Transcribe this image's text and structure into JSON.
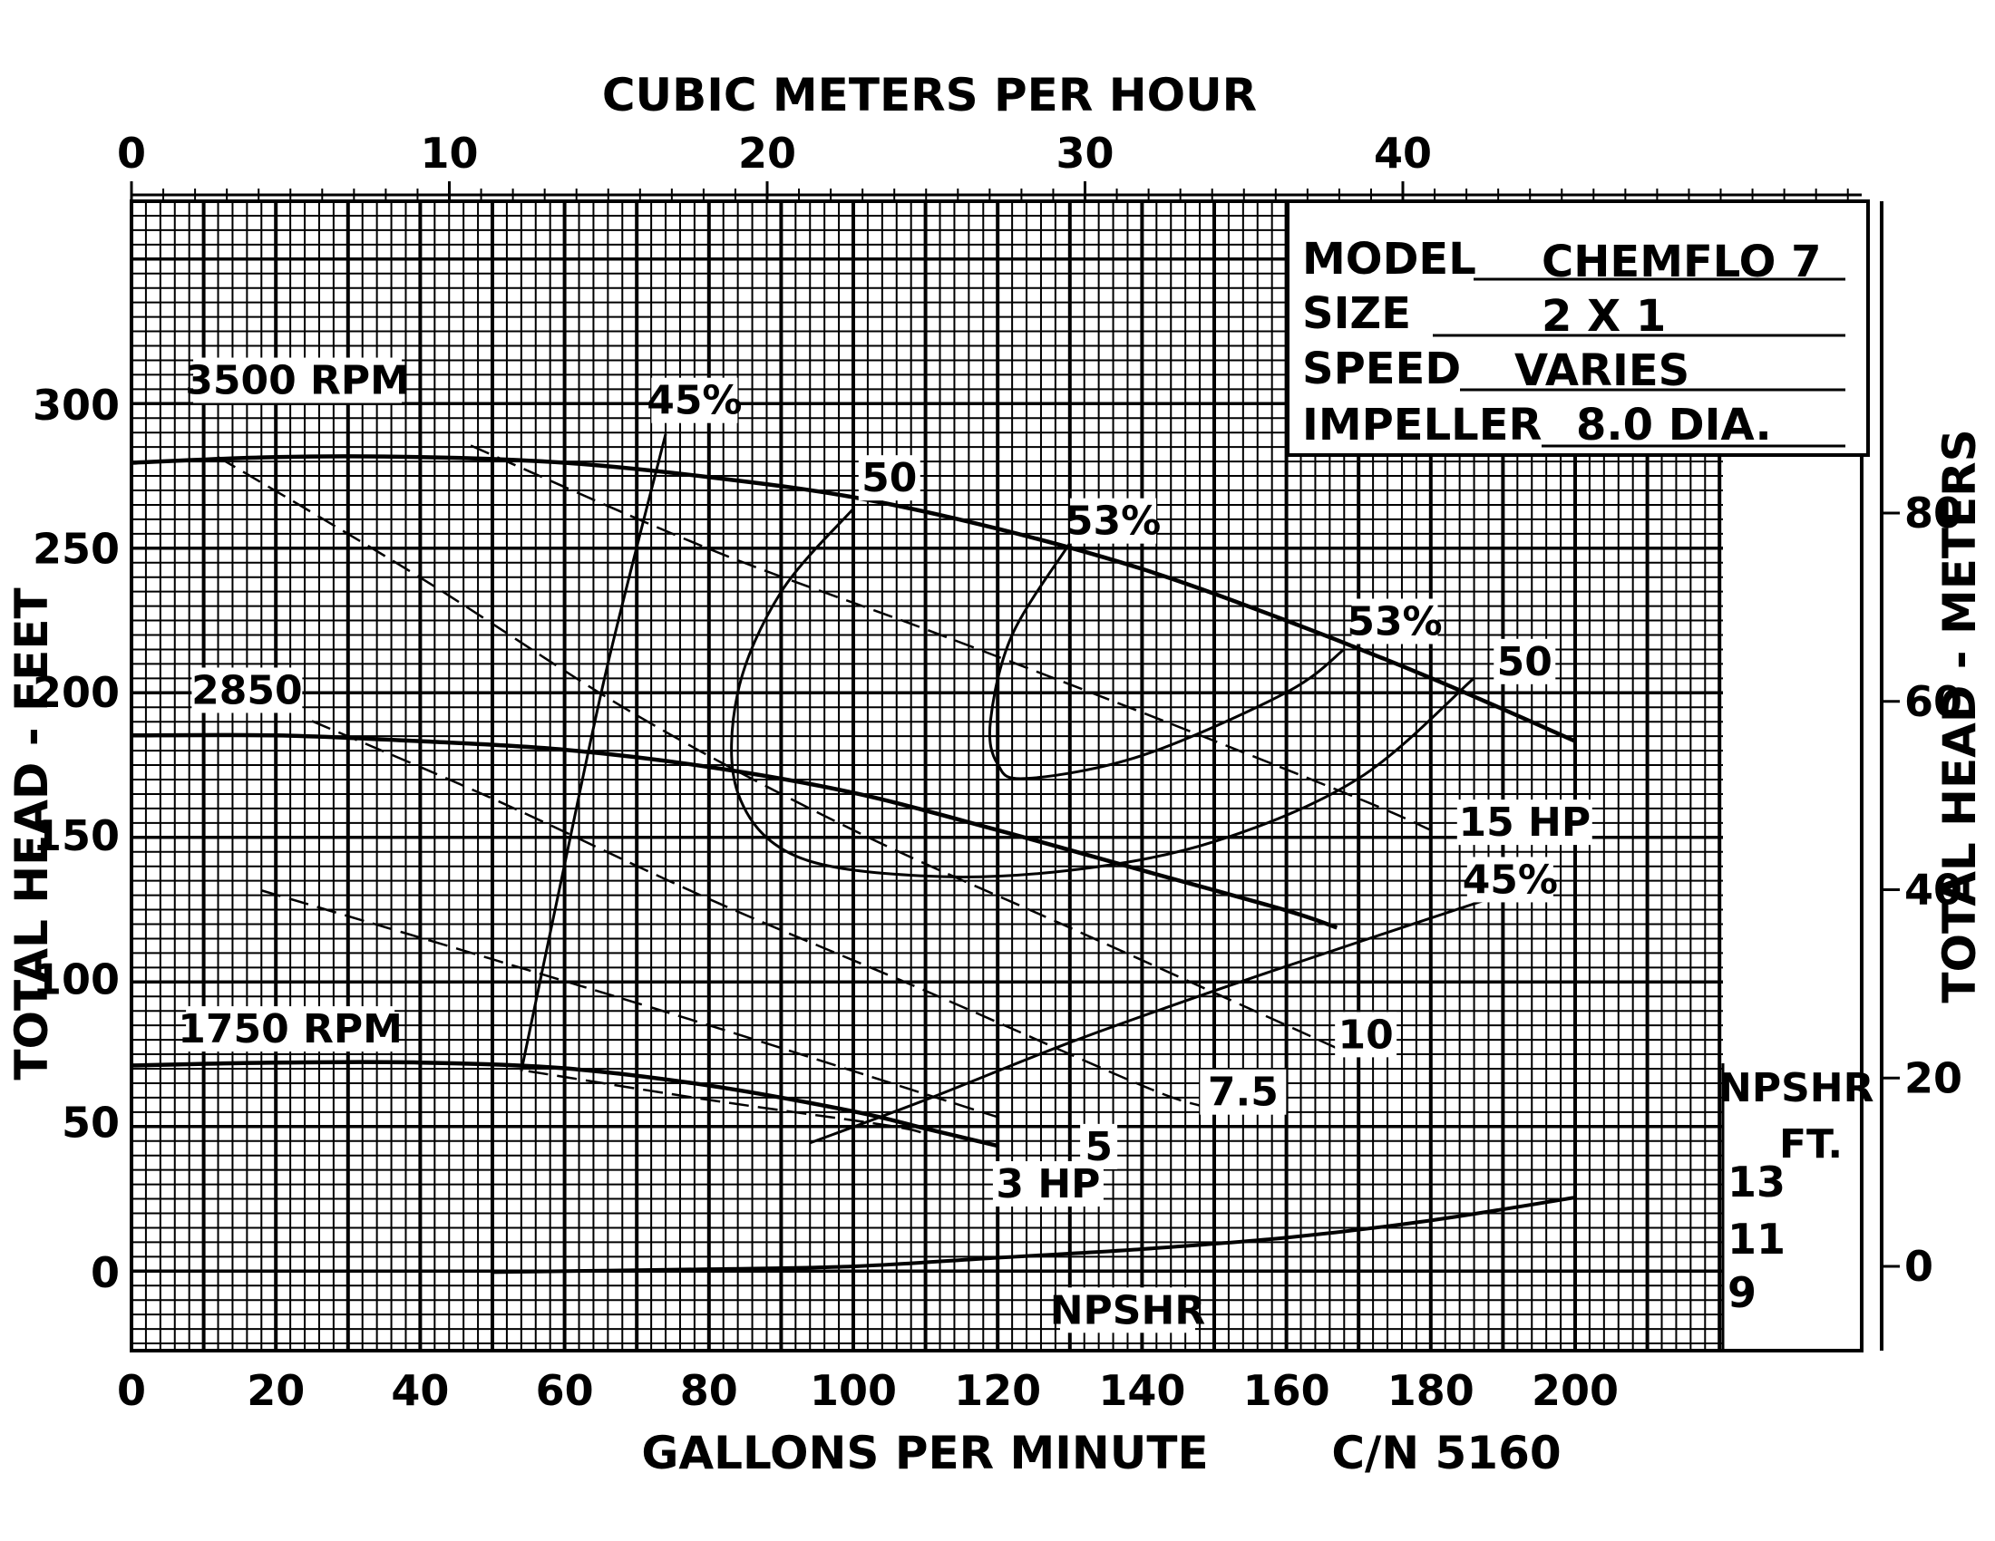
{
  "chart_data": {
    "type": "line",
    "title": "",
    "xlabel": "GALLONS PER MINUTE",
    "x2label": "CUBIC METERS PER HOUR",
    "ylabel": "TOTAL HEAD - FEET",
    "y2label": "TOTAL HEAD - METERS",
    "catalog_number": "C/N 5160",
    "xlim": [
      0,
      240
    ],
    "ylim": [
      0,
      340
    ],
    "x_ticks": [
      "0",
      "20",
      "40",
      "60",
      "80",
      "100",
      "120",
      "140",
      "160",
      "180",
      "200"
    ],
    "x2_ticks": [
      "0",
      "10",
      "20",
      "30",
      "40"
    ],
    "y_ticks": [
      "0",
      "50",
      "100",
      "150",
      "200",
      "250",
      "300"
    ],
    "y2_ticks": [
      "0",
      "20",
      "40",
      "60",
      "80"
    ],
    "info_box": {
      "model_label": "MODEL",
      "model_value": "CHEMFLO 7",
      "size_label": "SIZE",
      "size_value": "2 X 1",
      "speed_label": "SPEED",
      "speed_value": "VARIES",
      "impeller_label": "IMPELLER",
      "impeller_value": "8.0 DIA."
    },
    "series": [
      {
        "name": "3500 RPM",
        "kind": "head",
        "x": [
          0,
          20,
          40,
          60,
          80,
          100,
          120,
          140,
          160,
          180,
          200
        ],
        "y": [
          280,
          282,
          282,
          280,
          275,
          268,
          257,
          243,
          225,
          205,
          183
        ]
      },
      {
        "name": "2850",
        "kind": "head",
        "x": [
          0,
          20,
          40,
          60,
          80,
          100,
          120,
          140,
          160,
          167
        ],
        "y": [
          185,
          185,
          183,
          180,
          174,
          165,
          152,
          138,
          124,
          118
        ]
      },
      {
        "name": "1750 RPM",
        "kind": "head",
        "x": [
          0,
          20,
          40,
          60,
          80,
          100,
          110,
          120
        ],
        "y": [
          70,
          71,
          71,
          69,
          63,
          54,
          48,
          42
        ]
      },
      {
        "name": "NPSHR",
        "kind": "npshr",
        "x": [
          50,
          80,
          100,
          120,
          140,
          160,
          180,
          200
        ],
        "y": [
          -2,
          -1,
          0,
          3,
          6,
          10,
          16,
          24
        ]
      },
      {
        "name": "45%",
        "kind": "efficiency",
        "x": [
          54,
          60,
          66,
          74
        ],
        "y": [
          68,
          140,
          210,
          290
        ]
      },
      {
        "name": "50",
        "kind": "efficiency",
        "x": [
          100,
          90,
          84,
          84,
          92,
          110,
          130,
          150,
          170,
          186
        ],
        "y": [
          264,
          235,
          200,
          165,
          143,
          136,
          138,
          148,
          170,
          205
        ]
      },
      {
        "name": "53%",
        "kind": "efficiency",
        "x": [
          130,
          122,
          119,
          120,
          124,
          140,
          160,
          168
        ],
        "y": [
          252,
          220,
          190,
          175,
          170,
          178,
          200,
          215
        ]
      },
      {
        "name": "45%",
        "kind": "efficiency",
        "x": [
          94,
          110,
          130,
          150,
          170,
          188
        ],
        "y": [
          43,
          58,
          78,
          96,
          113,
          128
        ]
      },
      {
        "name": "15 HP",
        "kind": "power",
        "x": [
          47,
          80,
          110,
          140,
          170,
          180
        ],
        "y": [
          286,
          250,
          222,
          193,
          163,
          152
        ]
      },
      {
        "name": "10",
        "kind": "power",
        "x": [
          12,
          40,
          70,
          100,
          130,
          160,
          167
        ],
        "y": [
          282,
          240,
          192,
          152,
          118,
          84,
          76
        ]
      },
      {
        "name": "7.5",
        "kind": "power",
        "x": [
          25,
          50,
          80,
          110,
          140,
          148
        ],
        "y": [
          190,
          163,
          128,
          96,
          63,
          56
        ]
      },
      {
        "name": "5",
        "kind": "power",
        "x": [
          18,
          50,
          80,
          110,
          120
        ],
        "y": [
          131,
          107,
          84,
          60,
          52
        ]
      },
      {
        "name": "3 HP",
        "kind": "power",
        "x": [
          55,
          80,
          105,
          110
        ],
        "y": [
          68,
          58,
          49,
          46
        ]
      }
    ],
    "npshr_scale": {
      "title": "NPSHR",
      "unit": "FT.",
      "ticks": [
        "13",
        "11",
        "9"
      ]
    }
  }
}
